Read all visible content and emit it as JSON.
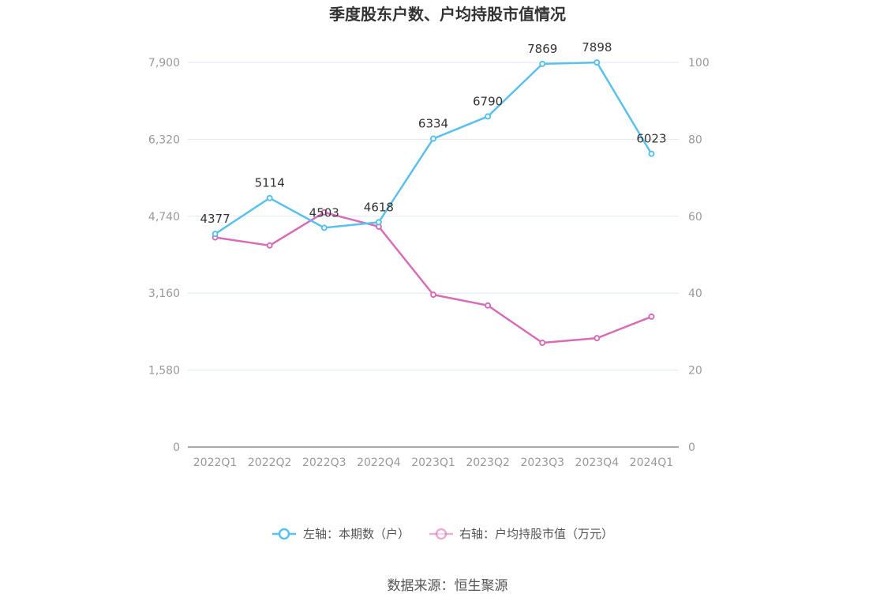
{
  "chart_data": {
    "type": "line",
    "title": "季度股东户数、户均持股市值情况",
    "categories": [
      "2022Q1",
      "2022Q2",
      "2022Q3",
      "2022Q4",
      "2023Q1",
      "2023Q2",
      "2023Q3",
      "2023Q4",
      "2024Q1"
    ],
    "left_axis": {
      "ticks": [
        "0",
        "1,580",
        "3,160",
        "4,740",
        "6,320",
        "7,900"
      ],
      "ylim": [
        0,
        7900
      ]
    },
    "right_axis": {
      "ticks": [
        "0",
        "20",
        "40",
        "60",
        "80",
        "100"
      ],
      "ylim": [
        0,
        100
      ]
    },
    "grid": true,
    "legend_position": "bottom-center",
    "series": [
      {
        "name": "左轴：本期数（户）",
        "axis": "left",
        "color": "#5bc0eb",
        "values": [
          4377,
          5114,
          4503,
          4618,
          6334,
          6790,
          7869,
          7898,
          6023
        ],
        "labels": [
          "4377",
          "5114",
          "4503",
          "4618",
          "6334",
          "6790",
          "7869",
          "7898",
          "6023"
        ]
      },
      {
        "name": "右轴：户均持股市值（万元）",
        "axis": "right",
        "color": "#d66db5",
        "values": [
          54.5,
          52.4,
          61.0,
          57.3,
          39.6,
          36.8,
          27.1,
          28.3,
          33.9
        ]
      }
    ],
    "source": "数据来源：恒生聚源"
  }
}
